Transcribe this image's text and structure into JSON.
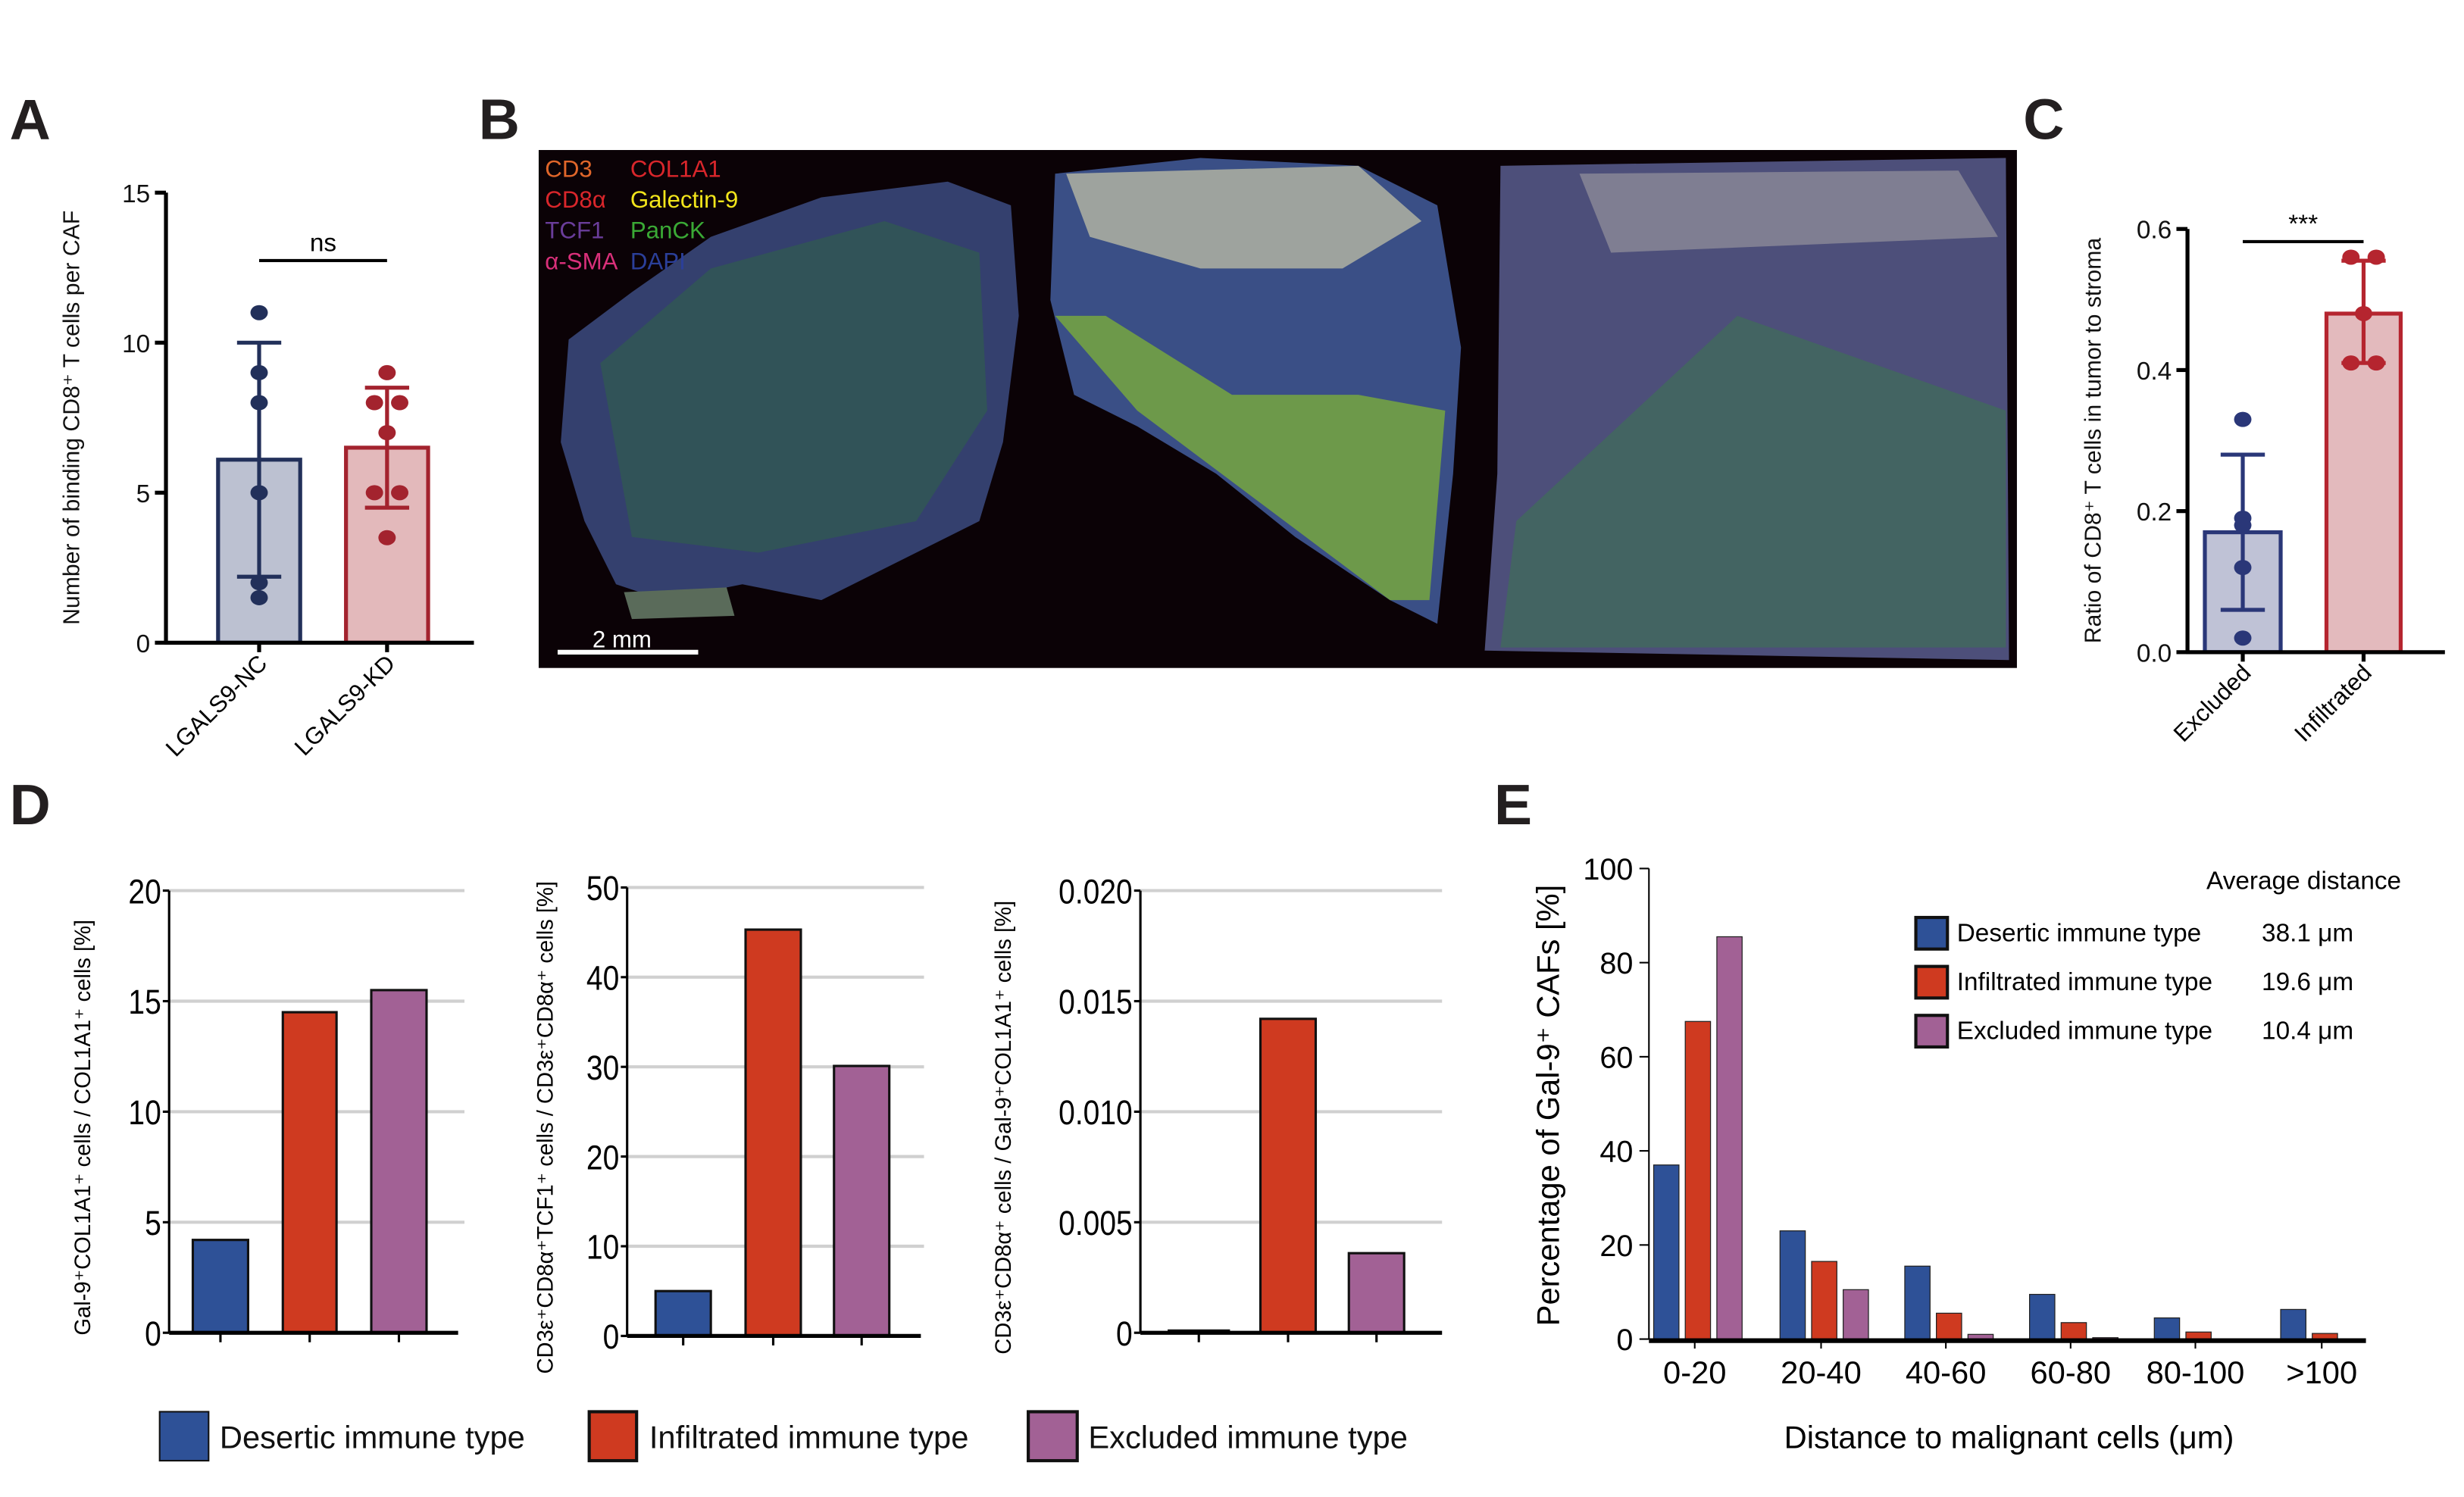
{
  "panels": {
    "A": "A",
    "B": "B",
    "C": "C",
    "D": "D",
    "E": "E"
  },
  "image_panel": {
    "markers": [
      {
        "label": "CD3",
        "color": "#e0662a"
      },
      {
        "label": "COL1A1",
        "color": "#d9262b"
      },
      {
        "label": "CD8α",
        "color": "#d9262b"
      },
      {
        "label": "Galectin-9",
        "color": "#f2e51b"
      },
      {
        "label": "TCF1",
        "color": "#6a3d9a"
      },
      {
        "label": "PanCK",
        "color": "#3aa935"
      },
      {
        "label": "α-SMA",
        "color": "#d9307a"
      },
      {
        "label": "DAPI",
        "color": "#2b3f99"
      }
    ],
    "scale_bar": "2 mm"
  },
  "legend_D": [
    {
      "label": "Desertic immune type",
      "color": "#2e5197"
    },
    {
      "label": "Infiltrated immune type",
      "color": "#cf3a20"
    },
    {
      "label": "Excluded immune type",
      "color": "#a26195"
    }
  ],
  "chart_data": [
    {
      "id": "A",
      "type": "bar",
      "categories": [
        "LGALS9-NC",
        "LGALS9-KD"
      ],
      "values": [
        6.1,
        6.5
      ],
      "error_low": [
        2.2,
        4.5
      ],
      "error_high": [
        10.0,
        8.5
      ],
      "points": [
        [
          11,
          9,
          8,
          5,
          2,
          1.5
        ],
        [
          9,
          8,
          8,
          7,
          5,
          5,
          3.5
        ]
      ],
      "fill_colors": [
        "#bcc1d1",
        "#e3b9bb"
      ],
      "stroke_colors": [
        "#22305a",
        "#a3232e"
      ],
      "ylabel": "Number of binding CD8⁺ T cells per CAF",
      "ylim": [
        0,
        15
      ],
      "yticks": [
        "0",
        "5",
        "10",
        "15"
      ],
      "significance": "ns"
    },
    {
      "id": "C",
      "type": "bar",
      "categories": [
        "Excluded",
        "Infiltrated"
      ],
      "values": [
        0.17,
        0.48
      ],
      "error_low": [
        0.06,
        0.41
      ],
      "error_high": [
        0.28,
        0.555
      ],
      "points": [
        [
          0.33,
          0.19,
          0.18,
          0.12,
          0.02
        ],
        [
          0.56,
          0.56,
          0.48,
          0.41,
          0.41
        ]
      ],
      "fill_colors": [
        "#bfc2d6",
        "#e3babd"
      ],
      "stroke_colors": [
        "#2a3778",
        "#b5252f"
      ],
      "ylabel": "Ratio of CD8⁺ T cells in tumor to stroma",
      "ylim": [
        0,
        0.6
      ],
      "yticks": [
        "0.0",
        "0.2",
        "0.4",
        "0.6"
      ],
      "significance": "***"
    },
    {
      "id": "D1",
      "type": "bar",
      "categories": [
        "Desertic immune type",
        "Infiltrated immune type",
        "Excluded immune type"
      ],
      "values": [
        4.2,
        14.5,
        15.5
      ],
      "ylabel": "Gal-9⁺COL1A1⁺ cells / COL1A1⁺ cells  [%]",
      "ylim": [
        0,
        20
      ],
      "yticks": [
        "0",
        "5",
        "10",
        "15",
        "20"
      ],
      "grid": true
    },
    {
      "id": "D2",
      "type": "bar",
      "categories": [
        "Desertic immune type",
        "Infiltrated immune type",
        "Excluded immune type"
      ],
      "values": [
        5.0,
        45.3,
        30.1
      ],
      "ylabel": "CD3ε⁺CD8α⁺TCF1⁺ cells / CD3ε⁺CD8α⁺ cells [%]",
      "ylim": [
        0,
        50
      ],
      "yticks": [
        "0",
        "10",
        "20",
        "30",
        "40",
        "50"
      ],
      "grid": true
    },
    {
      "id": "D3",
      "type": "bar",
      "categories": [
        "Desertic immune type",
        "Infiltrated immune type",
        "Excluded immune type"
      ],
      "values": [
        0.0001,
        0.0142,
        0.0036
      ],
      "ylabel": "CD3ε⁺CD8α⁺ cells / Gal-9⁺COL1A1⁺ cells [%]",
      "ylim": [
        0,
        0.02
      ],
      "yticks": [
        "0",
        "0.005",
        "0.010",
        "0.015",
        "0.020"
      ],
      "grid": true
    },
    {
      "id": "E",
      "type": "bar",
      "categories": [
        "0-20",
        "20-40",
        "40-60",
        "60-80",
        "80-100",
        ">100"
      ],
      "series": [
        {
          "name": "Desertic immune type",
          "values": [
            37,
            23,
            15.5,
            9.5,
            4.5,
            6.3
          ],
          "color": "#2e5197",
          "average": "38.1 μm"
        },
        {
          "name": "Infiltrated immune type",
          "values": [
            67.5,
            16.5,
            5.5,
            3.5,
            1.5,
            1.2
          ],
          "color": "#cf3a20",
          "average": "19.6 μm"
        },
        {
          "name": "Excluded immune type",
          "values": [
            85.5,
            10.5,
            1.0,
            0.3,
            0,
            0
          ],
          "color": "#a26195",
          "average": "10.4 μm"
        }
      ],
      "legend_title": "Average distance",
      "xlabel": "Distance to malignant cells (μm)",
      "ylabel": "Percentage of Gal-9⁺ CAFs [%]",
      "ylim": [
        0,
        100
      ],
      "yticks": [
        "0",
        "20",
        "40",
        "60",
        "80",
        "100"
      ],
      "legend_position": "top-right"
    }
  ]
}
